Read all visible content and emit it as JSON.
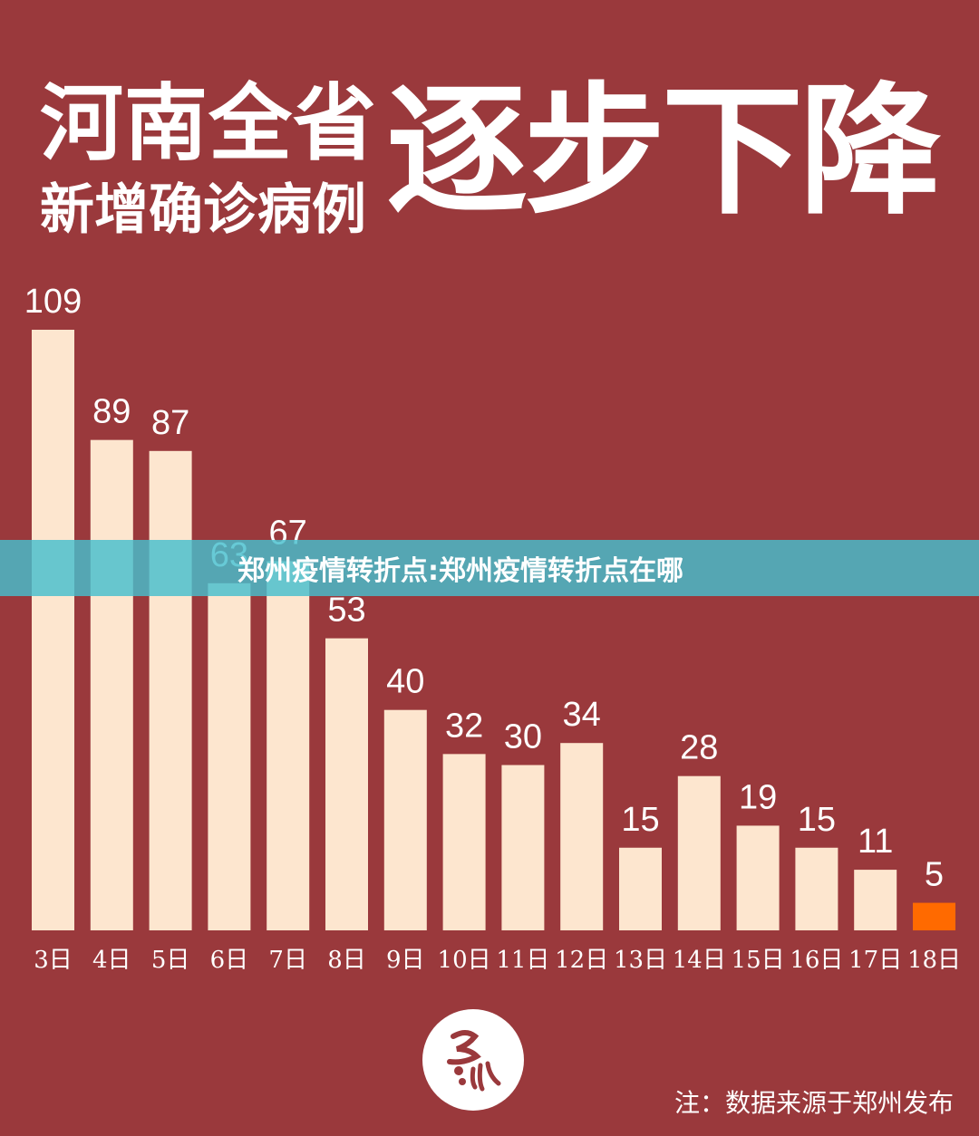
{
  "header": {
    "title_line1": "河南全省",
    "title_line2": "新增确诊病例",
    "title_emphasis": "逐步下降"
  },
  "overlay": {
    "text": "郑州疫情转折点:郑州疫情转折点在哪"
  },
  "footer": {
    "source": "注：数据来源于郑州发布"
  },
  "colors": {
    "background": "#9a393c",
    "bar": "#fde6cf",
    "highlight_bar": "#ff6a00",
    "text": "#ffffff"
  },
  "logo": {
    "icon": "calligraphy-seal-logo"
  },
  "chart_data": {
    "type": "bar",
    "categories": [
      "3日",
      "4日",
      "5日",
      "6日",
      "7日",
      "8日",
      "9日",
      "10日",
      "11日",
      "12日",
      "13日",
      "14日",
      "15日",
      "16日",
      "17日",
      "18日"
    ],
    "values": [
      109,
      89,
      87,
      63,
      67,
      53,
      40,
      32,
      30,
      34,
      15,
      28,
      19,
      15,
      11,
      5
    ],
    "highlight_index": 15,
    "title": "",
    "xlabel": "",
    "ylabel": "",
    "ylim": [
      0,
      109
    ],
    "grid": false,
    "data_labels": true
  }
}
